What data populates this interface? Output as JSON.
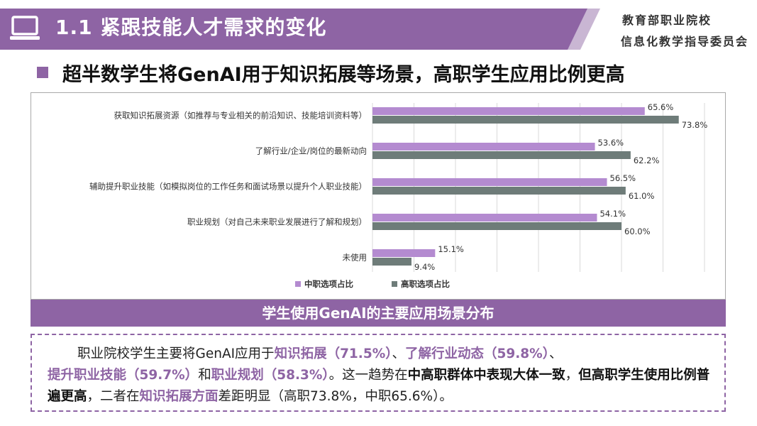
{
  "header": {
    "title": "1.1 紧跟技能人才需求的变化",
    "org_line1": "教育部职业院校",
    "org_line2": "信息化教学指导委员会"
  },
  "subtitle": "超半数学生将GenAI用于知识拓展等场景，高职学生应用比例更高",
  "chart_caption": "学生使用GenAI的主要应用场景分布",
  "colors": {
    "accent": "#8e64a4",
    "series_a": "#b48bd0",
    "series_b": "#6e7c79"
  },
  "chart_data": {
    "type": "bar",
    "orientation": "horizontal",
    "categories": [
      "获取知识拓展资源（如推荐与专业相关的前沿知识、技能培训资料等）",
      "了解行业/企业/岗位的最新动向",
      "辅助提升职业技能（如模拟岗位的工作任务和面试场景以提升个人职业技能）",
      "职业规划（对自己未来职业发展进行了解和规划）",
      "未使用"
    ],
    "series": [
      {
        "name": "中职选项占比",
        "values": [
          65.6,
          53.6,
          56.5,
          54.1,
          15.1
        ],
        "labels": [
          "65.6%",
          "53.6%",
          "56.5%",
          "54.1%",
          "15.1%"
        ]
      },
      {
        "name": "高职选项占比",
        "values": [
          73.8,
          62.2,
          61.0,
          60.0,
          9.4
        ],
        "labels": [
          "73.8%",
          "62.2%",
          "61.0%",
          "60.0%",
          "9.4%"
        ]
      }
    ],
    "xlim": [
      0,
      80
    ],
    "grid": true,
    "legend": "bottom"
  },
  "description": {
    "p1": "职业院校学生主要将GenAI应用于",
    "h1": "知识拓展（71.5%）",
    "p2": "、",
    "h2": "了解行业动态（59.8%）",
    "p3": "、",
    "h3": "提升职业技能（59.7%）",
    "p4": "和",
    "h4": "职业规划（58.3%）",
    "p5": "。这一趋势在",
    "b1": "中高职群体中表现大体一致",
    "p6": "，",
    "b2": "但高职学生使用比例普遍更高",
    "p7": "，二者在",
    "h5": "知识拓展方面",
    "p8": "差距明显（高职73.8%，中职65.6%）。"
  }
}
